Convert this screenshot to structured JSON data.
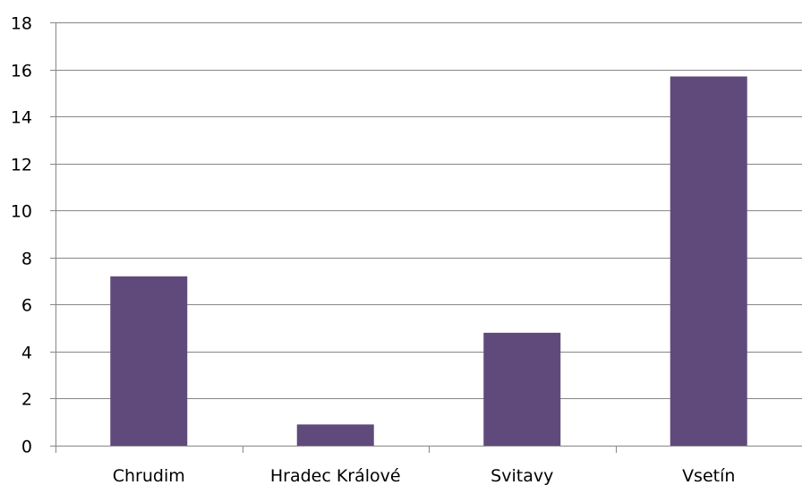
{
  "chart_data": {
    "type": "bar",
    "title": "",
    "xlabel": "",
    "ylabel": "",
    "categories": [
      "Chrudim",
      "Hradec Králové",
      "Svitavy",
      "Vsetín"
    ],
    "values": [
      7.2,
      0.9,
      4.8,
      15.7
    ],
    "ylim": [
      0,
      18
    ],
    "yticks": [
      "0",
      "2",
      "4",
      "6",
      "8",
      "10",
      "12",
      "14",
      "16",
      "18"
    ],
    "grid": true,
    "legend": "none",
    "bar_color": "#604a7b",
    "grid_color": "#868686"
  }
}
